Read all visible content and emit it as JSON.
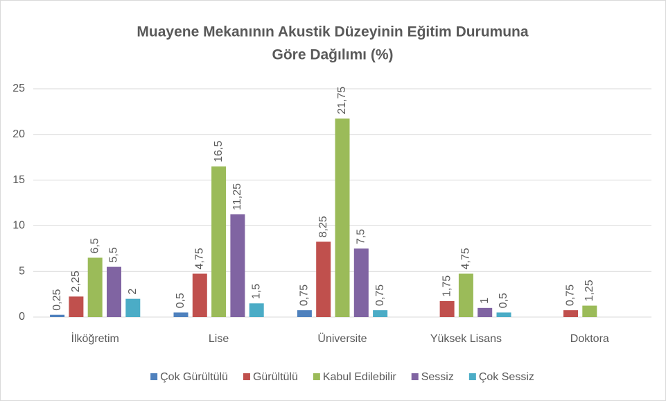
{
  "chart_data": {
    "type": "bar",
    "title": [
      "Muayene Mekanının Akustik Düzeyinin  Eğitim Durumuna",
      "Göre Dağılımı (%)"
    ],
    "categories": [
      "İlköğretim",
      "Lise",
      "Üniversite",
      "Yüksek Lisans",
      "Doktora"
    ],
    "series": [
      {
        "name": "Çok Gürültülü",
        "color": "#4f81bd",
        "values": [
          0.25,
          0.5,
          0.75,
          null,
          null
        ],
        "value_labels": [
          "0,25",
          "0,5",
          "0,75",
          null,
          null
        ]
      },
      {
        "name": "Gürültülü",
        "color": "#c0504d",
        "values": [
          2.25,
          4.75,
          8.25,
          1.75,
          0.75
        ],
        "value_labels": [
          "2,25",
          "4,75",
          "8,25",
          "1,75",
          "0,75"
        ]
      },
      {
        "name": "Kabul Edilebilir",
        "color": "#9bbb59",
        "values": [
          6.5,
          16.5,
          21.75,
          4.75,
          1.25
        ],
        "value_labels": [
          "6,5",
          "16,5",
          "21,75",
          "4,75",
          "1,25"
        ]
      },
      {
        "name": "Sessiz",
        "color": "#8064a2",
        "values": [
          5.5,
          11.25,
          7.5,
          1,
          null
        ],
        "value_labels": [
          "5,5",
          "11,25",
          "7,5",
          "1",
          null
        ]
      },
      {
        "name": "Çok Sessiz",
        "color": "#4bacc6",
        "values": [
          2,
          1.5,
          0.75,
          0.5,
          null
        ],
        "value_labels": [
          "2",
          "1,5",
          "0,75",
          "0,5",
          null
        ]
      }
    ],
    "ylim": [
      0,
      25
    ],
    "yticks": [
      0,
      5,
      10,
      15,
      20,
      25
    ],
    "grid": true,
    "legend": "bottom"
  }
}
